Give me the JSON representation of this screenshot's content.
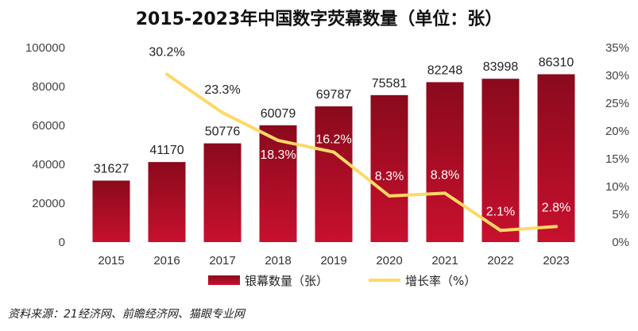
{
  "chart_data": {
    "type": "bar+line",
    "title": "2015-2023年中国数字荧幕数量（单位：张）",
    "categories": [
      "2015",
      "2016",
      "2017",
      "2018",
      "2019",
      "2020",
      "2021",
      "2022",
      "2023"
    ],
    "series": [
      {
        "name": "银幕数量（张）",
        "type": "bar",
        "axis": "left",
        "values": [
          31627,
          41170,
          50776,
          60079,
          69787,
          75581,
          82248,
          83998,
          86310
        ],
        "labels": [
          "31627",
          "41170",
          "50776",
          "60079",
          "69787",
          "75581",
          "82248",
          "83998",
          "86310"
        ]
      },
      {
        "name": "增长率（%）",
        "type": "line",
        "axis": "right",
        "values": [
          null,
          30.2,
          23.3,
          18.3,
          16.2,
          8.3,
          8.8,
          2.1,
          2.8
        ],
        "labels": [
          "",
          "30.2%",
          "23.3%",
          "18.3%",
          "16.2%",
          "8.3%",
          "8.8%",
          "2.1%",
          "2.8%"
        ]
      }
    ],
    "y_left": {
      "min": 0,
      "max": 100000,
      "ticks": [
        "0",
        "20000",
        "40000",
        "60000",
        "80000",
        "100000"
      ]
    },
    "y_right": {
      "min": 0,
      "max": 35,
      "ticks": [
        "0%",
        "5%",
        "10%",
        "15%",
        "20%",
        "25%",
        "30%",
        "35%"
      ]
    },
    "legend": {
      "position": "bottom",
      "entries": [
        "银幕数量（张）",
        "增长率（%）"
      ]
    },
    "colors": {
      "bar_top": "#8a0a1c",
      "bar_bottom": "#c8102e",
      "line": "#ffd966"
    }
  },
  "source_note": "资料来源：21经济网、前瞻经济网、猫眼专业网"
}
